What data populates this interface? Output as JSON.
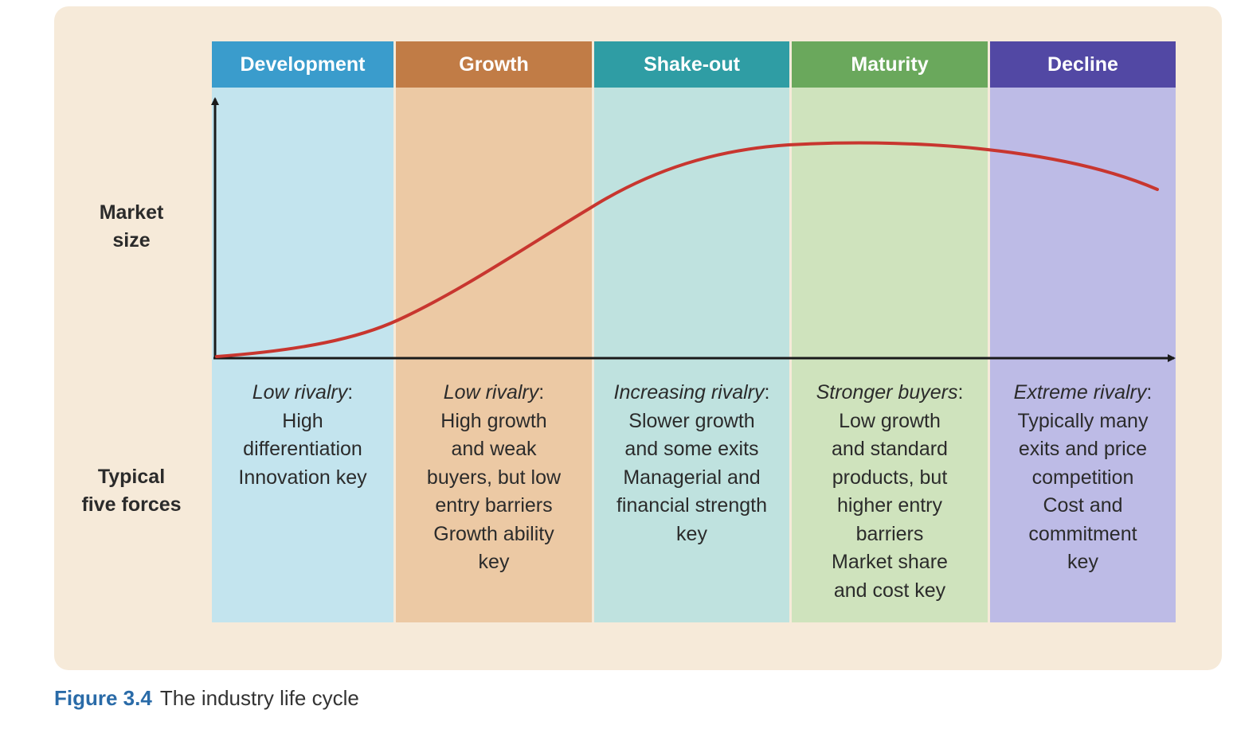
{
  "diagram": {
    "row_labels": {
      "market_size": "Market\nsize",
      "five_forces": "Typical\nfive forces"
    },
    "stages": [
      {
        "name": "Development",
        "header_color": "#3a9ccc",
        "bg_color": "#c3e4ee",
        "lead": "Low rivalry",
        "text": "High\ndifferentiation\nInnovation key"
      },
      {
        "name": "Growth",
        "header_color": "#c17c46",
        "bg_color": "#ecc9a4",
        "lead": "Low rivalry",
        "text": "High growth\nand weak\nbuyers, but low\nentry barriers\nGrowth ability\nkey"
      },
      {
        "name": "Shake-out",
        "header_color": "#2f9da4",
        "bg_color": "#bfe2df",
        "lead": "Increasing rivalry",
        "text": "Slower growth\nand some exits\nManagerial and\nfinancial strength\nkey"
      },
      {
        "name": "Maturity",
        "header_color": "#6aa85c",
        "bg_color": "#cfe3bd",
        "lead": "Stronger buyers",
        "text": "Low growth\nand standard\nproducts, but\nhigher entry\nbarriers\nMarket share\nand cost key"
      },
      {
        "name": "Decline",
        "header_color": "#5248a4",
        "bg_color": "#bdbbe6",
        "lead": "Extreme rivalry",
        "text": "Typically many\nexits and price\ncompetition\nCost and\ncommitment\nkey"
      }
    ],
    "curve_color": "#c8362f"
  },
  "caption": {
    "number": "Figure 3.4",
    "text": "The industry life cycle"
  }
}
